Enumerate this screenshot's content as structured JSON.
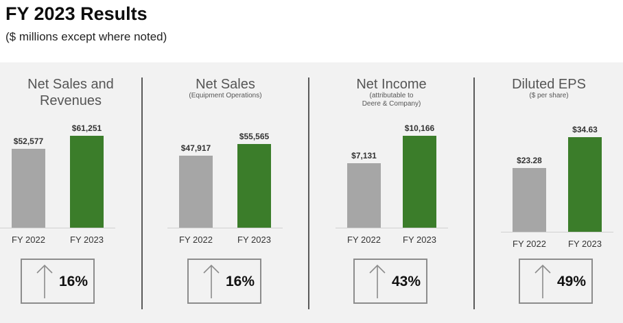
{
  "page": {
    "title": "FY 2023 Results",
    "subtitle": "($ millions except where noted)"
  },
  "colors": {
    "prior_year": "#a6a6a6",
    "current_year": "#3b7d2a",
    "panel_bg": "#f2f2f2"
  },
  "icons": {
    "change": "up-arrow-icon"
  },
  "chart_data": [
    {
      "type": "bar",
      "title": "Net Sales and\nRevenues",
      "subtitle": "",
      "categories": [
        "FY 2022",
        "FY 2023"
      ],
      "values": [
        52577,
        61251
      ],
      "value_labels": [
        "$52,577",
        "$61,251"
      ],
      "change": "16%"
    },
    {
      "type": "bar",
      "title": "Net Sales",
      "subtitle": "(Equipment Operations)",
      "categories": [
        "FY 2022",
        "FY 2023"
      ],
      "values": [
        47917,
        55565
      ],
      "value_labels": [
        "$47,917",
        "$55,565"
      ],
      "change": "16%"
    },
    {
      "type": "bar",
      "title": "Net Income",
      "subtitle": "(attributable to\nDeere & Company)",
      "categories": [
        "FY 2022",
        "FY 2023"
      ],
      "values": [
        7131,
        10166
      ],
      "value_labels": [
        "$7,131",
        "$10,166"
      ],
      "change": "43%"
    },
    {
      "type": "bar",
      "title": "Diluted EPS",
      "subtitle": "($ per share)",
      "categories": [
        "FY 2022",
        "FY 2023"
      ],
      "values": [
        23.28,
        34.63
      ],
      "value_labels": [
        "$23.28",
        "$34.63"
      ],
      "change": "49%"
    }
  ]
}
